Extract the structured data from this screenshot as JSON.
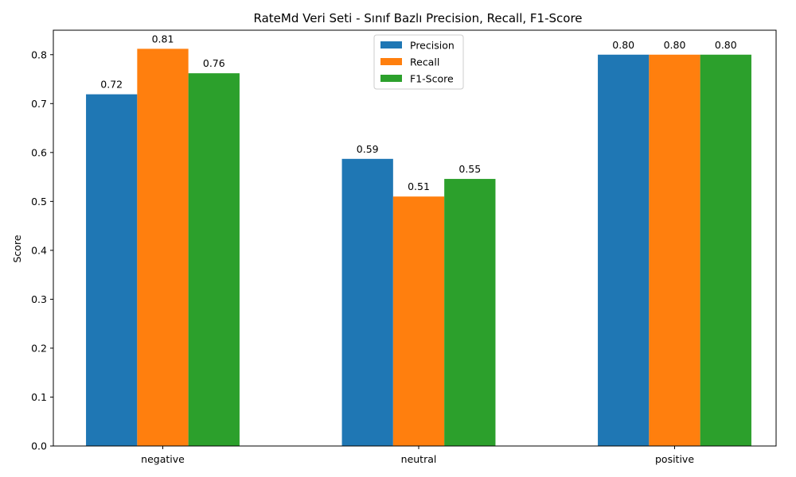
{
  "chart_data": {
    "type": "bar",
    "title": "RateMd Veri Seti - Sınıf Bazlı Precision, Recall, F1-Score",
    "xlabel": "",
    "ylabel": "Score",
    "ylim": [
      0,
      0.85
    ],
    "yticks": [
      "0.0",
      "0.1",
      "0.2",
      "0.3",
      "0.4",
      "0.5",
      "0.6",
      "0.7",
      "0.8"
    ],
    "categories": [
      "negative",
      "neutral",
      "positive"
    ],
    "series": [
      {
        "name": "Precision",
        "color": "#1f77b4",
        "values": [
          0.719,
          0.587,
          0.8
        ],
        "labels": [
          "0.72",
          "0.59",
          "0.80"
        ]
      },
      {
        "name": "Recall",
        "color": "#ff7f0e",
        "values": [
          0.812,
          0.51,
          0.8
        ],
        "labels": [
          "0.81",
          "0.51",
          "0.80"
        ]
      },
      {
        "name": "F1-Score",
        "color": "#2ca02c",
        "values": [
          0.762,
          0.546,
          0.8
        ],
        "labels": [
          "0.76",
          "0.55",
          "0.80"
        ]
      }
    ],
    "legend": "top-center",
    "grid": false
  }
}
